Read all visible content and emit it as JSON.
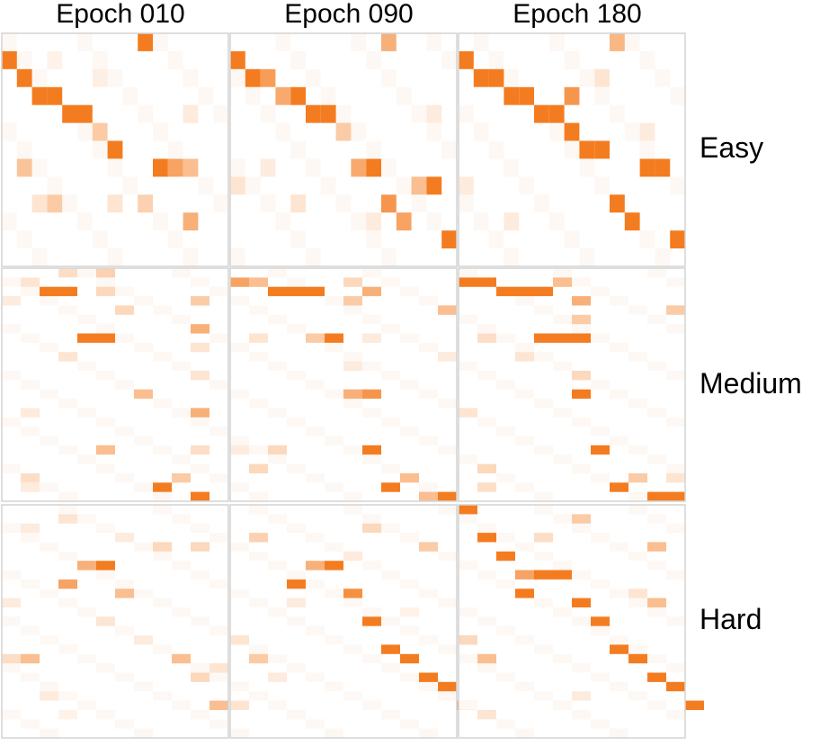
{
  "columns": [
    "Epoch 010",
    "Epoch 090",
    "Epoch 180"
  ],
  "rows": [
    "Easy",
    "Medium",
    "Hard"
  ],
  "colors": {
    "high": "#f47c20",
    "low": "#ffffff",
    "border": "#d4d4d4"
  },
  "chart_data": {
    "type": "heatmap",
    "title": "",
    "xlabel": "",
    "ylabel": "",
    "value_range": [
      0,
      1
    ],
    "panels": [
      {
        "row": "Easy",
        "column": "Epoch 010",
        "size": [
          15,
          13
        ],
        "cells": [
          [
            9,
            0,
            1
          ],
          [
            0,
            1,
            1
          ],
          [
            1,
            2,
            1
          ],
          [
            2,
            3,
            1
          ],
          [
            3,
            3,
            1
          ],
          [
            4,
            4,
            1
          ],
          [
            5,
            4,
            1
          ],
          [
            6,
            5,
            0.4
          ],
          [
            7,
            6,
            1
          ],
          [
            10,
            7,
            1
          ],
          [
            11,
            7,
            0.7
          ],
          [
            12,
            7,
            0.5
          ],
          [
            1,
            7,
            0.45
          ],
          [
            3,
            9,
            0.4
          ],
          [
            9,
            9,
            0.35
          ],
          [
            12,
            10,
            0.6
          ],
          [
            2,
            9,
            0.2
          ],
          [
            7,
            9,
            0.2
          ],
          [
            6,
            2,
            0.12
          ],
          [
            12,
            4,
            0.15
          ],
          [
            3,
            1,
            0.1
          ]
        ]
      },
      {
        "row": "Easy",
        "column": "Epoch 090",
        "size": [
          15,
          13
        ],
        "cells": [
          [
            10,
            0,
            0.6
          ],
          [
            0,
            1,
            1
          ],
          [
            1,
            2,
            1
          ],
          [
            2,
            2,
            0.75
          ],
          [
            3,
            3,
            0.65
          ],
          [
            4,
            3,
            1
          ],
          [
            5,
            4,
            1
          ],
          [
            6,
            4,
            1
          ],
          [
            7,
            5,
            0.4
          ],
          [
            8,
            7,
            0.65
          ],
          [
            9,
            7,
            1
          ],
          [
            12,
            8,
            0.5
          ],
          [
            13,
            8,
            1
          ],
          [
            10,
            9,
            0.8
          ],
          [
            11,
            10,
            0.7
          ],
          [
            14,
            11,
            1
          ],
          [
            0,
            8,
            0.2
          ],
          [
            4,
            9,
            0.2
          ],
          [
            2,
            7,
            0.15
          ],
          [
            9,
            10,
            0.15
          ],
          [
            13,
            4,
            0.15
          ]
        ]
      },
      {
        "row": "Easy",
        "column": "Epoch 180",
        "size": [
          15,
          13
        ],
        "cells": [
          [
            10,
            0,
            0.55
          ],
          [
            0,
            1,
            1
          ],
          [
            1,
            2,
            1
          ],
          [
            2,
            2,
            1
          ],
          [
            3,
            3,
            1
          ],
          [
            4,
            3,
            1
          ],
          [
            7,
            3,
            0.8
          ],
          [
            5,
            4,
            1
          ],
          [
            6,
            4,
            1
          ],
          [
            7,
            5,
            1
          ],
          [
            8,
            6,
            1
          ],
          [
            9,
            6,
            1
          ],
          [
            12,
            7,
            1
          ],
          [
            13,
            7,
            1
          ],
          [
            10,
            9,
            1
          ],
          [
            11,
            10,
            1
          ],
          [
            14,
            11,
            1
          ],
          [
            9,
            2,
            0.2
          ],
          [
            0,
            8,
            0.15
          ],
          [
            3,
            10,
            0.15
          ],
          [
            12,
            5,
            0.15
          ]
        ]
      },
      {
        "row": "Medium",
        "column": "Epoch 010",
        "size": [
          12,
          25
        ],
        "cells": [
          [
            2,
            2,
            1
          ],
          [
            3,
            2,
            1
          ],
          [
            5,
            0,
            0.35
          ],
          [
            3,
            0,
            0.25
          ],
          [
            1,
            1,
            0.2
          ],
          [
            5,
            2,
            0.3
          ],
          [
            10,
            3,
            0.4
          ],
          [
            6,
            4,
            0.3
          ],
          [
            10,
            6,
            0.6
          ],
          [
            4,
            7,
            1
          ],
          [
            5,
            7,
            1
          ],
          [
            10,
            8,
            0.2
          ],
          [
            7,
            13,
            0.5
          ],
          [
            10,
            15,
            0.6
          ],
          [
            5,
            19,
            0.5
          ],
          [
            8,
            23,
            1
          ],
          [
            9,
            22,
            0.4
          ],
          [
            10,
            24,
            1
          ],
          [
            1,
            22,
            0.25
          ],
          [
            10,
            19,
            0.25
          ],
          [
            3,
            9,
            0.2
          ],
          [
            10,
            11,
            0.2
          ],
          [
            1,
            15,
            0.15
          ],
          [
            1,
            23,
            0.15
          ],
          [
            0,
            3,
            0.15
          ]
        ]
      },
      {
        "row": "Medium",
        "column": "Epoch 090",
        "size": [
          12,
          25
        ],
        "cells": [
          [
            0,
            1,
            0.7
          ],
          [
            1,
            1,
            0.5
          ],
          [
            2,
            2,
            1
          ],
          [
            3,
            2,
            1
          ],
          [
            4,
            2,
            1
          ],
          [
            7,
            2,
            0.6
          ],
          [
            6,
            1,
            0.3
          ],
          [
            6,
            3,
            0.4
          ],
          [
            11,
            4,
            0.5
          ],
          [
            4,
            7,
            0.4
          ],
          [
            5,
            7,
            1
          ],
          [
            7,
            7,
            0.15
          ],
          [
            6,
            13,
            0.6
          ],
          [
            7,
            13,
            0.8
          ],
          [
            7,
            19,
            1
          ],
          [
            1,
            21,
            0.3
          ],
          [
            2,
            19,
            0.3
          ],
          [
            8,
            23,
            1
          ],
          [
            9,
            22,
            0.5
          ],
          [
            10,
            24,
            0.5
          ],
          [
            11,
            24,
            1
          ],
          [
            0,
            19,
            0.15
          ],
          [
            6,
            10,
            0.15
          ],
          [
            1,
            7,
            0.2
          ],
          [
            11,
            9,
            0.15
          ]
        ]
      },
      {
        "row": "Medium",
        "column": "Epoch 180",
        "size": [
          12,
          25
        ],
        "cells": [
          [
            0,
            1,
            1
          ],
          [
            1,
            1,
            1
          ],
          [
            2,
            2,
            1
          ],
          [
            3,
            2,
            1
          ],
          [
            4,
            2,
            1
          ],
          [
            5,
            1,
            0.5
          ],
          [
            6,
            3,
            0.6
          ],
          [
            6,
            5,
            0.4
          ],
          [
            11,
            4,
            0.4
          ],
          [
            4,
            7,
            1
          ],
          [
            5,
            7,
            1
          ],
          [
            6,
            7,
            1
          ],
          [
            6,
            13,
            1
          ],
          [
            6,
            11,
            0.3
          ],
          [
            7,
            19,
            1
          ],
          [
            1,
            21,
            0.3
          ],
          [
            8,
            23,
            1
          ],
          [
            9,
            22,
            0.4
          ],
          [
            10,
            24,
            1
          ],
          [
            11,
            24,
            1
          ],
          [
            11,
            22,
            0.2
          ],
          [
            1,
            7,
            0.25
          ],
          [
            0,
            15,
            0.2
          ],
          [
            3,
            9,
            0.2
          ],
          [
            1,
            23,
            0.25
          ]
        ]
      },
      {
        "row": "Hard",
        "column": "Epoch 010",
        "size": [
          12,
          25
        ],
        "cells": [
          [
            4,
            6,
            0.6
          ],
          [
            5,
            6,
            1
          ],
          [
            3,
            8,
            0.7
          ],
          [
            6,
            9,
            0.5
          ],
          [
            1,
            16,
            0.5
          ],
          [
            9,
            16,
            0.5
          ],
          [
            10,
            18,
            0.3
          ],
          [
            11,
            21,
            0.5
          ],
          [
            8,
            4,
            0.3
          ],
          [
            10,
            4,
            0.3
          ],
          [
            0,
            16,
            0.25
          ],
          [
            3,
            1,
            0.2
          ],
          [
            11,
            17,
            0.2
          ],
          [
            5,
            12,
            0.2
          ],
          [
            2,
            20,
            0.15
          ],
          [
            0,
            10,
            0.15
          ],
          [
            7,
            14,
            0.15
          ],
          [
            1,
            2,
            0.15
          ],
          [
            3,
            22,
            0.1
          ],
          [
            6,
            3,
            0.15
          ]
        ]
      },
      {
        "row": "Hard",
        "column": "Epoch 090",
        "size": [
          12,
          25
        ],
        "cells": [
          [
            4,
            6,
            0.6
          ],
          [
            5,
            6,
            1
          ],
          [
            3,
            8,
            1
          ],
          [
            6,
            9,
            0.85
          ],
          [
            7,
            12,
            1
          ],
          [
            8,
            15,
            1
          ],
          [
            9,
            16,
            1
          ],
          [
            10,
            18,
            1
          ],
          [
            11,
            19,
            1
          ],
          [
            12,
            21,
            1
          ],
          [
            1,
            3,
            0.35
          ],
          [
            1,
            16,
            0.4
          ],
          [
            7,
            2,
            0.3
          ],
          [
            10,
            4,
            0.4
          ],
          [
            0,
            14,
            0.2
          ],
          [
            2,
            18,
            0.15
          ],
          [
            0,
            21,
            0.2
          ],
          [
            3,
            10,
            0.15
          ],
          [
            6,
            5,
            0.15
          ],
          [
            9,
            11,
            0.1
          ]
        ]
      },
      {
        "row": "Hard",
        "column": "Epoch 180",
        "size": [
          12,
          25
        ],
        "cells": [
          [
            0,
            0,
            1
          ],
          [
            1,
            3,
            1
          ],
          [
            2,
            5,
            1
          ],
          [
            3,
            7,
            0.7
          ],
          [
            4,
            7,
            1
          ],
          [
            5,
            7,
            1
          ],
          [
            3,
            9,
            1
          ],
          [
            6,
            10,
            1
          ],
          [
            7,
            12,
            1
          ],
          [
            8,
            15,
            1
          ],
          [
            9,
            16,
            1
          ],
          [
            10,
            18,
            1
          ],
          [
            11,
            19,
            1
          ],
          [
            12,
            21,
            1
          ],
          [
            6,
            1,
            0.4
          ],
          [
            10,
            4,
            0.5
          ],
          [
            1,
            16,
            0.5
          ],
          [
            10,
            10,
            0.5
          ],
          [
            0,
            14,
            0.3
          ],
          [
            4,
            3,
            0.25
          ],
          [
            1,
            22,
            0.2
          ],
          [
            9,
            9,
            0.2
          ],
          [
            6,
            20,
            0.15
          ]
        ]
      }
    ]
  }
}
